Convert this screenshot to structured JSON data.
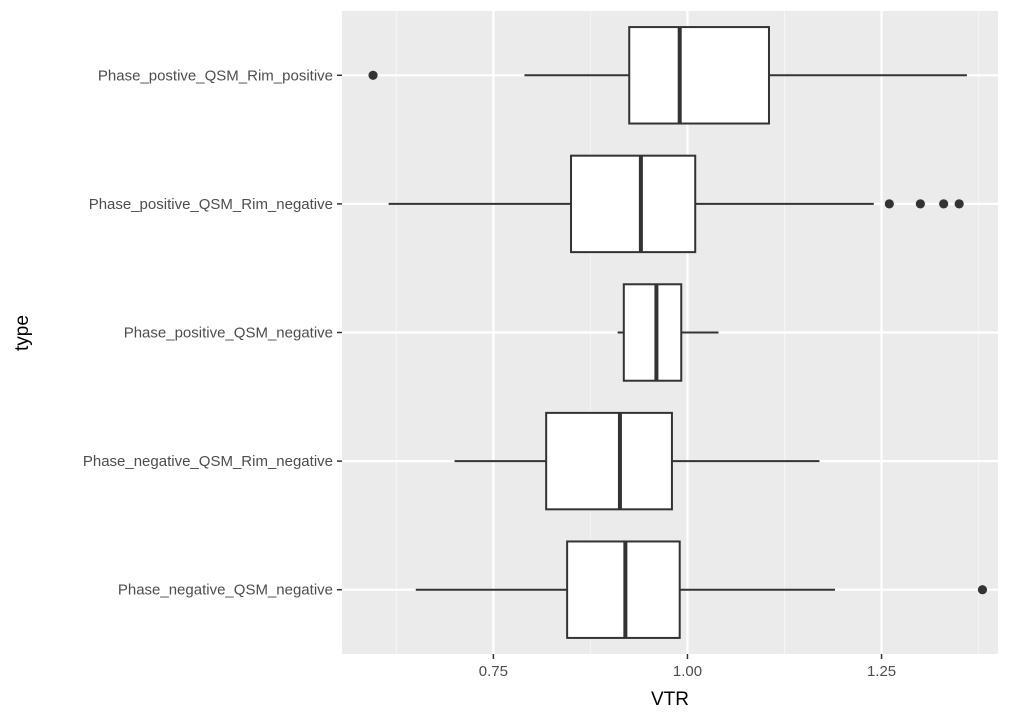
{
  "chart_data": {
    "type": "boxplot",
    "orientation": "horizontal",
    "xlabel": "VTR",
    "ylabel": "type",
    "xlim": [
      0.555,
      1.4
    ],
    "x_ticks": [
      0.75,
      1.0,
      1.25
    ],
    "x_tick_labels": [
      "0.75",
      "1.00",
      "1.25"
    ],
    "grid": true,
    "categories": [
      "Phase_postive_QSM_Rim_positive",
      "Phase_positive_QSM_Rim_negative",
      "Phase_positive_QSM_negative",
      "Phase_negative_QSM_Rim_negative",
      "Phase_negative_QSM_negative"
    ],
    "boxes": [
      {
        "category": "Phase_postive_QSM_Rim_positive",
        "whisker_low": 0.79,
        "q1": 0.925,
        "median": 0.99,
        "q3": 1.105,
        "whisker_high": 1.36,
        "outliers": [
          0.595
        ]
      },
      {
        "category": "Phase_positive_QSM_Rim_negative",
        "whisker_low": 0.615,
        "q1": 0.85,
        "median": 0.94,
        "q3": 1.01,
        "whisker_high": 1.24,
        "outliers": [
          1.26,
          1.3,
          1.33,
          1.35
        ]
      },
      {
        "category": "Phase_positive_QSM_negative",
        "whisker_low": 0.91,
        "q1": 0.918,
        "median": 0.96,
        "q3": 0.992,
        "whisker_high": 1.04,
        "outliers": []
      },
      {
        "category": "Phase_negative_QSM_Rim_negative",
        "whisker_low": 0.7,
        "q1": 0.818,
        "median": 0.913,
        "q3": 0.98,
        "whisker_high": 1.17,
        "outliers": []
      },
      {
        "category": "Phase_negative_QSM_negative",
        "whisker_low": 0.65,
        "q1": 0.845,
        "median": 0.92,
        "q3": 0.99,
        "whisker_high": 1.19,
        "outliers": [
          1.38
        ]
      }
    ],
    "colors": {
      "panel": "#EBEBEB",
      "grid_major": "#FFFFFF",
      "grid_minor": "#F5F5F5",
      "box_fill": "#FFFFFF",
      "box_stroke": "#333333",
      "outlier": "#333333",
      "tick_mark": "#333333"
    }
  }
}
